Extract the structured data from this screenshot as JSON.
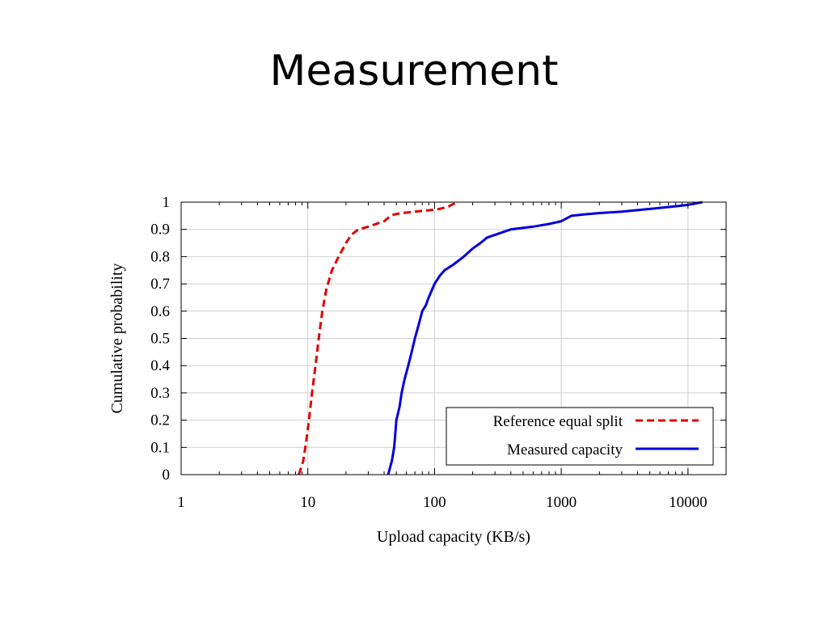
{
  "slide": {
    "title": "Measurement"
  },
  "chart_data": {
    "type": "line",
    "xlabel": "Upload capacity (KB/s)",
    "ylabel": "Cumulative probability",
    "x_scale": "log",
    "xlim": [
      1,
      20000
    ],
    "ylim": [
      0,
      1
    ],
    "x_ticks": [
      1,
      10,
      100,
      1000,
      10000
    ],
    "x_tick_labels": [
      "1",
      "10",
      "100",
      "1000",
      "10000"
    ],
    "y_ticks": [
      0,
      0.1,
      0.2,
      0.3,
      0.4,
      0.5,
      0.6,
      0.7,
      0.8,
      0.9,
      1
    ],
    "y_tick_labels": [
      "0",
      "0.1",
      "0.2",
      "0.3",
      "0.4",
      "0.5",
      "0.6",
      "0.7",
      "0.8",
      "0.9",
      "1"
    ],
    "grid": true,
    "legend_position": "bottom-right",
    "series": [
      {
        "name": "Reference equal split",
        "color": "#e00000",
        "style": "dashed",
        "x": [
          8.5,
          9.2,
          9.7,
          10.2,
          10.8,
          11.5,
          12.2,
          13,
          14,
          15.5,
          17.5,
          20,
          22,
          25,
          30,
          40,
          45,
          48,
          55,
          70,
          90,
          110,
          130,
          150
        ],
        "y": [
          0,
          0.05,
          0.12,
          0.2,
          0.3,
          0.4,
          0.5,
          0.6,
          0.68,
          0.75,
          0.8,
          0.85,
          0.88,
          0.9,
          0.91,
          0.93,
          0.95,
          0.955,
          0.96,
          0.965,
          0.97,
          0.975,
          0.985,
          1
        ]
      },
      {
        "name": "Measured capacity",
        "color": "#0000dd",
        "style": "solid",
        "x": [
          43,
          46,
          48,
          50,
          53,
          55,
          58,
          62,
          66,
          70,
          75,
          80,
          85,
          90,
          100,
          110,
          120,
          140,
          170,
          200,
          230,
          260,
          300,
          400,
          600,
          800,
          1000,
          1200,
          1500,
          2000,
          3000,
          5000,
          8000,
          10000,
          13000
        ],
        "y": [
          0,
          0.05,
          0.1,
          0.2,
          0.25,
          0.3,
          0.35,
          0.4,
          0.45,
          0.5,
          0.55,
          0.6,
          0.62,
          0.65,
          0.7,
          0.73,
          0.75,
          0.77,
          0.8,
          0.83,
          0.85,
          0.87,
          0.88,
          0.9,
          0.91,
          0.92,
          0.93,
          0.95,
          0.955,
          0.96,
          0.965,
          0.975,
          0.985,
          0.99,
          1
        ]
      }
    ]
  }
}
